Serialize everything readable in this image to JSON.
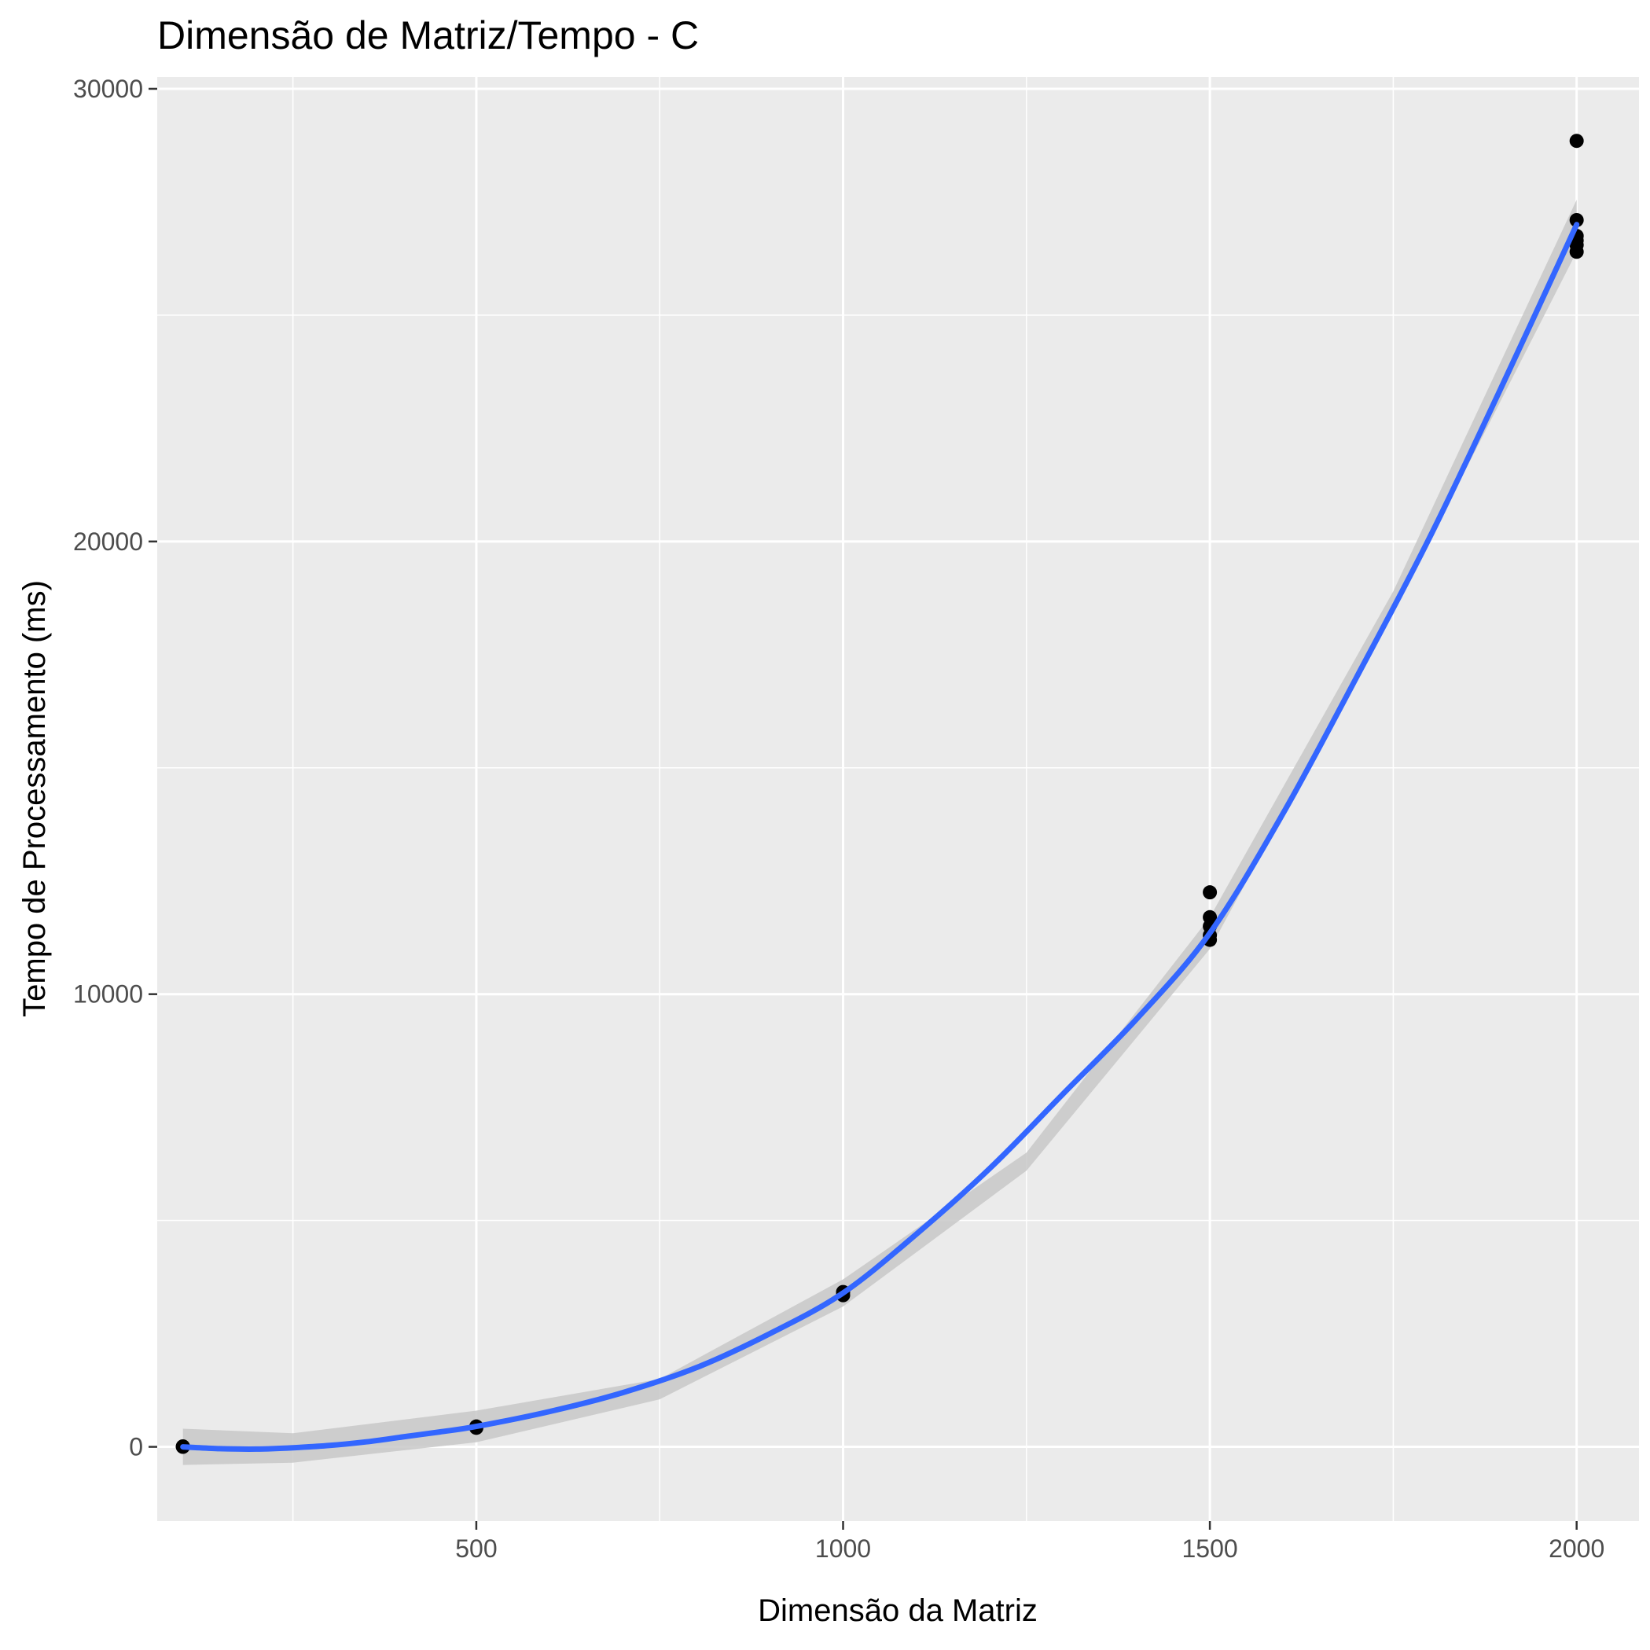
{
  "chart_data": {
    "type": "scatter",
    "title": "Dimensão de Matriz/Tempo - C",
    "xlabel": "Dimensão da Matriz",
    "ylabel": "Tempo de Processamento (ms)",
    "xlim": [
      65,
      2085
    ],
    "ylim": [
      -1640,
      30260
    ],
    "x_ticks": [
      500,
      1000,
      1500,
      2000
    ],
    "x_minor_ticks": [
      250,
      750,
      1250,
      1750
    ],
    "y_ticks": [
      0,
      10000,
      20000,
      30000
    ],
    "y_minor_ticks": [
      5000,
      15000,
      25000
    ],
    "grid": true,
    "legend": "none",
    "background_color": "#ebebeb",
    "grid_color": "#ffffff",
    "point_color": "#000000",
    "line_color": "#3366ff",
    "band_color": "#c8c8c8",
    "points": [
      {
        "x": 100,
        "y": 0
      },
      {
        "x": 100,
        "y": 5
      },
      {
        "x": 100,
        "y": 10
      },
      {
        "x": 500,
        "y": 420
      },
      {
        "x": 500,
        "y": 450
      },
      {
        "x": 1000,
        "y": 3350
      },
      {
        "x": 1000,
        "y": 3420
      },
      {
        "x": 1500,
        "y": 11200
      },
      {
        "x": 1500,
        "y": 11300
      },
      {
        "x": 1500,
        "y": 11500
      },
      {
        "x": 1500,
        "y": 11700
      },
      {
        "x": 1500,
        "y": 12250
      },
      {
        "x": 2000,
        "y": 26400
      },
      {
        "x": 2000,
        "y": 26550
      },
      {
        "x": 2000,
        "y": 26650
      },
      {
        "x": 2000,
        "y": 26750
      },
      {
        "x": 2000,
        "y": 27100
      },
      {
        "x": 2000,
        "y": 28850
      }
    ],
    "smooth_line": {
      "x": [
        100,
        150,
        200,
        250,
        300,
        350,
        400,
        450,
        500,
        600,
        700,
        800,
        900,
        1000,
        1100,
        1200,
        1300,
        1400,
        1500,
        1600,
        1700,
        1800,
        1900,
        2000
      ],
      "y": [
        0,
        -40,
        -50,
        -20,
        30,
        110,
        220,
        330,
        450,
        780,
        1200,
        1750,
        2500,
        3400,
        4700,
        6150,
        7800,
        9450,
        11350,
        14000,
        17000,
        20100,
        23500,
        27000
      ]
    },
    "confidence_band": {
      "x": [
        100,
        250,
        500,
        750,
        1000,
        1250,
        1500,
        1750,
        2000
      ],
      "lower": [
        -400,
        -350,
        100,
        1050,
        3100,
        6100,
        11000,
        18450,
        26400
      ],
      "upper": [
        400,
        300,
        800,
        1500,
        3700,
        6500,
        11700,
        18900,
        27550
      ]
    }
  }
}
